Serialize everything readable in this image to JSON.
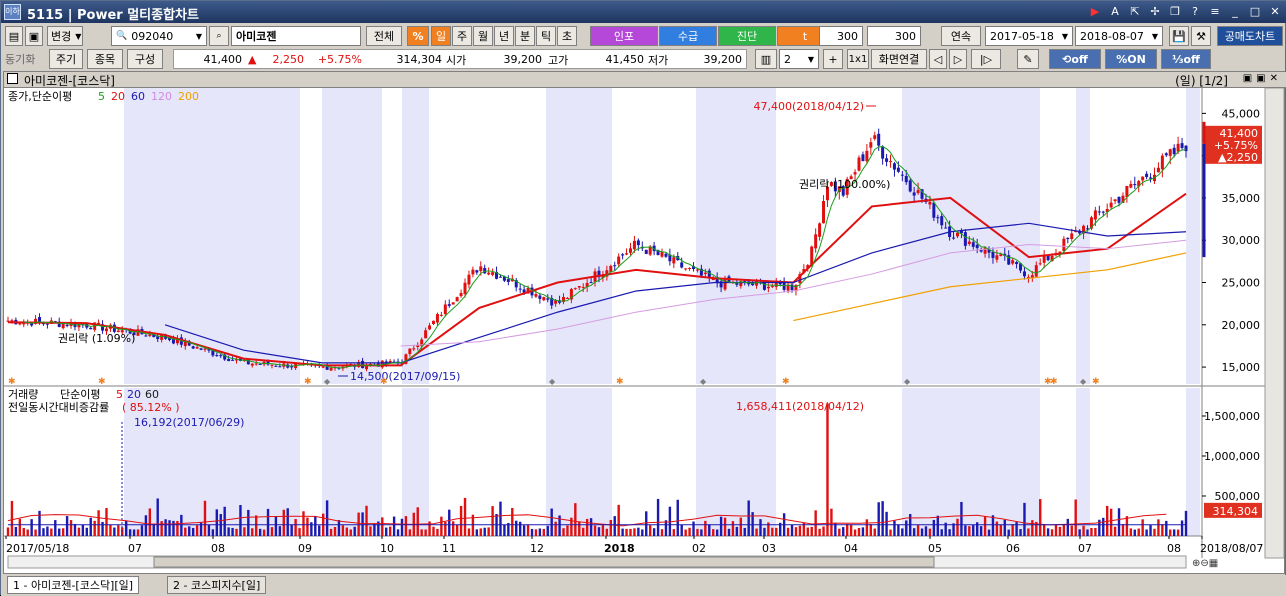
{
  "window": {
    "title": "5115 | Power 멀티종합차트",
    "app_icon_label": "이하"
  },
  "toolbar1": {
    "change_label": "변경",
    "code_value": "092040",
    "stock_name": "아미코젠",
    "all_label": "전체",
    "percent_label": "%",
    "periods": [
      "일",
      "주",
      "월",
      "년",
      "분",
      "틱",
      "초"
    ],
    "info_buttons": [
      {
        "label": "인포",
        "color": "#b548d8"
      },
      {
        "label": "수급",
        "color": "#2f7ee0"
      },
      {
        "label": "진단",
        "color": "#2fb54a"
      },
      {
        "label": "t",
        "color": "#f08020"
      }
    ],
    "count1": "300",
    "count2": "300",
    "continuous_label": "연속",
    "start_date": "2017-05-18",
    "end_date": "2018-08-07",
    "short_sell_label": "공매도차트"
  },
  "toolbar2": {
    "sync_label": "동기화",
    "cycle_label": "주기",
    "item_label": "종목",
    "compose_label": "구성",
    "price": "41,400",
    "change": "2,250",
    "change_pct": "+5.75%",
    "volume": "314,304",
    "open_label": "시가",
    "open": "39,200",
    "high_label": "고가",
    "high": "41,450",
    "low_label": "저가",
    "low": "39,200",
    "split_count": "2",
    "one_by_one": "1x1",
    "screen_link_label": "화면연결",
    "toggles": [
      {
        "label": "off",
        "state": "off"
      },
      {
        "label": "ON",
        "state": "on"
      },
      {
        "label": "off",
        "state": "off"
      }
    ]
  },
  "chart_header": {
    "title": "아미코젠-[코스닥]",
    "page_label": "(일) [1/2]"
  },
  "price_panel": {
    "legend_title": "종가,단순이평",
    "ma_periods": [
      "5",
      "20",
      "60",
      "120",
      "200"
    ],
    "ma_colors": [
      "#1a9f1a",
      "#e01010",
      "#1a1ab0",
      "#cf8ae0",
      "#f0a000"
    ],
    "y_ticks": [
      "45,000",
      "40,000",
      "35,000",
      "30,000",
      "25,000",
      "20,000",
      "15,000"
    ],
    "current_box": [
      "41,400",
      "+5.75%",
      "▲2,250"
    ],
    "annotations": {
      "high": "47,400(2018/04/12)",
      "low": "14,500(2017/09/15)",
      "rights1": "권리락 (1.09%)",
      "rights2": "권리락 (100.00%)"
    }
  },
  "volume_panel": {
    "legend_title": "거래량",
    "legend_ma": "단순이평",
    "ma_periods": [
      "5",
      "20",
      "60"
    ],
    "ma_colors": [
      "#e01010",
      "#1a1ab0",
      "#1a1a1a"
    ],
    "sub_label": "전일동시간대비증감률",
    "sub_value": "85.12%",
    "y_ticks": [
      "1,500,000",
      "1,000,000",
      "500,000"
    ],
    "current_box": "314,304",
    "annotations": {
      "max": "1,658,411(2018/04/12)",
      "min": "16,192(2017/06/29)"
    }
  },
  "x_axis": [
    "2017/05/18",
    "07",
    "08",
    "09",
    "10",
    "11",
    "12",
    "2018",
    "02",
    "03",
    "04",
    "05",
    "06",
    "07",
    "08",
    "2018/08/07"
  ],
  "bottom_tabs": [
    "1 - 아미코젠-[코스닥][일]",
    "2 - 코스피지수[일]"
  ],
  "chart_data": {
    "type": "line",
    "ylim": [
      13000,
      48000
    ],
    "x": [
      "2017-05",
      "2017-06",
      "2017-07",
      "2017-08",
      "2017-09",
      "2017-10",
      "2017-11",
      "2017-12",
      "2018-01",
      "2018-02",
      "2018-03",
      "2018-04",
      "2018-05",
      "2018-06",
      "2018-07",
      "2018-08"
    ],
    "series": [
      {
        "name": "종가",
        "values": [
          20500,
          20000,
          18500,
          15500,
          15000,
          15500,
          27000,
          22500,
          29500,
          25000,
          24500,
          42000,
          31000,
          26000,
          34000,
          41400
        ]
      },
      {
        "name": "20",
        "values": [
          20300,
          20200,
          18800,
          16000,
          15200,
          15200,
          22000,
          25000,
          26500,
          25500,
          25000,
          34000,
          35000,
          28000,
          29000,
          35500
        ]
      },
      {
        "name": "60",
        "values": [
          null,
          null,
          20000,
          17000,
          15500,
          15500,
          18500,
          21500,
          24000,
          25000,
          25000,
          28500,
          31000,
          32000,
          30500,
          31000
        ]
      },
      {
        "name": "120",
        "values": [
          null,
          null,
          null,
          null,
          null,
          17500,
          18000,
          19500,
          21500,
          23000,
          24000,
          26000,
          28500,
          29500,
          29000,
          30000
        ]
      },
      {
        "name": "200",
        "values": [
          null,
          null,
          null,
          null,
          null,
          null,
          null,
          null,
          null,
          null,
          20500,
          22500,
          24500,
          25500,
          26500,
          28500
        ]
      }
    ],
    "volume": {
      "max": 1658411,
      "max_date": "2018/04/12",
      "last": 314304
    }
  }
}
